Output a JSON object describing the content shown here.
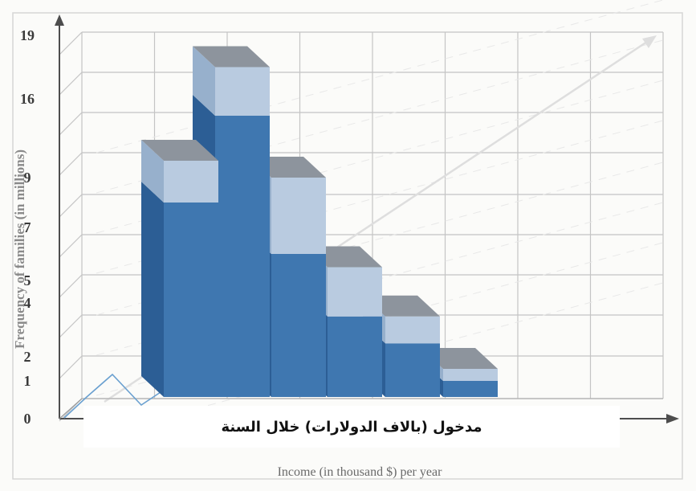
{
  "chart_data": {
    "type": "bar",
    "style": "3d-stacked-histogram",
    "ylabel": "Frequency of families (in millions)",
    "xlabel": "Income (in thousand $) per year",
    "overlay_caption": "مدخول (بالاف الدولارات) خلال السنة",
    "yticks": [
      "0",
      "1",
      "2",
      "4",
      "5",
      "7",
      "9",
      "16",
      "19"
    ],
    "ytick_values": [
      0,
      1,
      2,
      4,
      5,
      7,
      9,
      16,
      19
    ],
    "ylim": [
      0,
      19
    ],
    "grid": true,
    "series": [
      {
        "values": [
          8.0,
          14.5,
          6.0,
          3.5,
          2.5,
          1.0
        ]
      },
      {
        "values": [
          2.5,
          3.0,
          3.0,
          2.0,
          1.0,
          0.5
        ]
      }
    ],
    "colors": {
      "front_dark": "#3f77b0",
      "front_light": "#b9cbe0",
      "side_dark": "#2c5e95",
      "side_light": "#97b0cc",
      "top": "#8d949d",
      "grid": "#c4c4c4",
      "axis": "#4d4d4d"
    }
  }
}
